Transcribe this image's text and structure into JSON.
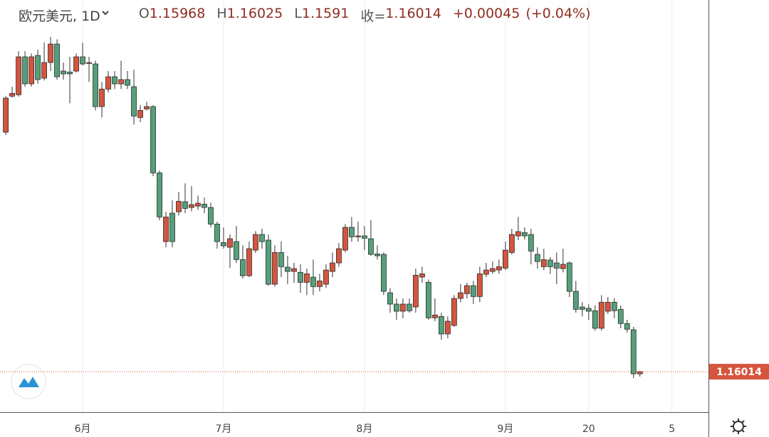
{
  "header": {
    "title": "欧元美元, 1D",
    "ohlc_labels": [
      "O",
      "H",
      "L",
      "收="
    ],
    "change": 0.00045,
    "change_label": "+0.00045",
    "change_pct": 0.04,
    "change_pct_label": "(+0.04%)"
  },
  "chart_data": {
    "type": "candlestick",
    "up_color": "#d5553f",
    "down_color": "#55a07a",
    "grid": true,
    "xlim": [
      -0.9,
      109.7
    ],
    "ylim": [
      1.1516,
      1.2386
    ],
    "xticks": [
      {
        "value": 12,
        "label": "6月"
      },
      {
        "value": 34,
        "label": "7月"
      },
      {
        "value": 56,
        "label": "8月"
      },
      {
        "value": 78,
        "label": "9月"
      },
      {
        "value": 91,
        "label": "20"
      },
      {
        "value": 104,
        "label": "5"
      }
    ],
    "open": [
      1.2107,
      1.2183,
      1.2186,
      1.2266,
      1.2209,
      1.2269,
      1.2221,
      1.2254,
      1.2293,
      1.2236,
      1.2234,
      1.2236,
      1.2266,
      1.2252,
      1.2251,
      1.2161,
      1.2198,
      1.2224,
      1.2209,
      1.2218,
      1.2203,
      1.2138,
      1.2156,
      1.2161,
      1.2021,
      1.1876,
      1.1936,
      1.1939,
      1.196,
      1.1948,
      1.1951,
      1.1955,
      1.1948,
      1.1913,
      1.1874,
      1.1864,
      1.1876,
      1.1838,
      1.1804,
      1.1858,
      1.1891,
      1.1879,
      1.1786,
      1.1853,
      1.1822,
      1.1813,
      1.1811,
      1.179,
      1.1801,
      1.1781,
      1.1786,
      1.1813,
      1.1831,
      1.1858,
      1.1906,
      1.1886,
      1.1888,
      1.1882,
      1.185,
      1.1849,
      1.1768,
      1.1744,
      1.1729,
      1.1744,
      1.1738,
      1.1801,
      1.179,
      1.1715,
      1.1718,
      1.1681,
      1.1699,
      1.1756,
      1.1766,
      1.1783,
      1.176,
      1.1807,
      1.1813,
      1.1816,
      1.182,
      1.1853,
      1.1888,
      1.1895,
      1.1891,
      1.1849,
      1.1823,
      1.1837,
      1.1831,
      1.1819,
      1.1831,
      1.1771,
      1.1738,
      1.1735,
      1.173,
      1.1693,
      1.1729,
      1.1748,
      1.1733,
      1.1703,
      1.169,
      1.15968
    ],
    "high": [
      1.2183,
      1.2203,
      1.2278,
      1.2278,
      1.2273,
      1.2281,
      1.2296,
      1.2308,
      1.2303,
      1.2254,
      1.2266,
      1.2273,
      1.2296,
      1.2266,
      1.2258,
      1.2213,
      1.2236,
      1.2236,
      1.2258,
      1.2236,
      1.2239,
      1.2164,
      1.2171,
      1.2164,
      1.2026,
      1.1939,
      1.1963,
      1.1981,
      1.1999,
      1.1993,
      1.1973,
      1.1969,
      1.1958,
      1.1918,
      1.1906,
      1.1891,
      1.1909,
      1.1868,
      1.1876,
      1.1898,
      1.1903,
      1.1891,
      1.1868,
      1.1876,
      1.1846,
      1.1831,
      1.1828,
      1.1819,
      1.1838,
      1.1808,
      1.1828,
      1.1853,
      1.1873,
      1.1913,
      1.1928,
      1.1918,
      1.1909,
      1.1921,
      1.1868,
      1.1853,
      1.1778,
      1.1756,
      1.1756,
      1.1756,
      1.1819,
      1.1823,
      1.1796,
      1.1756,
      1.1726,
      1.1718,
      1.1763,
      1.1786,
      1.1789,
      1.1793,
      1.1823,
      1.1831,
      1.1834,
      1.1838,
      1.1876,
      1.1903,
      1.1928,
      1.1906,
      1.1903,
      1.1864,
      1.1861,
      1.1843,
      1.1853,
      1.1861,
      1.1834,
      1.1793,
      1.1748,
      1.1744,
      1.1741,
      1.1763,
      1.1759,
      1.1756,
      1.1741,
      1.1711,
      1.1696,
      1.16025
    ],
    "low": [
      1.2101,
      1.218,
      1.2182,
      1.2203,
      1.2203,
      1.2209,
      1.2216,
      1.2236,
      1.2218,
      1.2218,
      1.2168,
      1.2233,
      1.2248,
      1.2213,
      1.2153,
      1.2138,
      1.2191,
      1.2198,
      1.2198,
      1.2198,
      1.2123,
      1.2128,
      1.2153,
      1.2014,
      1.1921,
      1.1864,
      1.1864,
      1.1931,
      1.1936,
      1.194,
      1.1943,
      1.1936,
      1.1906,
      1.1861,
      1.1861,
      1.182,
      1.1831,
      1.1798,
      1.1801,
      1.1852,
      1.1861,
      1.1783,
      1.1781,
      1.1801,
      1.1786,
      1.1789,
      1.1768,
      1.1763,
      1.1763,
      1.1771,
      1.1778,
      1.1801,
      1.1823,
      1.1853,
      1.1876,
      1.1876,
      1.1858,
      1.1846,
      1.1838,
      1.1763,
      1.1726,
      1.1711,
      1.1714,
      1.1726,
      1.1726,
      1.1789,
      1.1711,
      1.1708,
      1.1669,
      1.1672,
      1.1696,
      1.1748,
      1.1756,
      1.1744,
      1.1748,
      1.1801,
      1.1808,
      1.1808,
      1.1816,
      1.1849,
      1.1879,
      1.188,
      1.1828,
      1.1819,
      1.1816,
      1.1808,
      1.1786,
      1.1811,
      1.1759,
      1.1726,
      1.1718,
      1.1711,
      1.1688,
      1.1688,
      1.1723,
      1.1714,
      1.1693,
      1.1684,
      1.1588,
      1.1591
    ],
    "close": [
      1.2179,
      1.2189,
      1.2266,
      1.2209,
      1.2266,
      1.2218,
      1.2254,
      1.2293,
      1.2224,
      1.223,
      1.223,
      1.2266,
      1.2251,
      1.2254,
      1.2161,
      1.2198,
      1.2224,
      1.2209,
      1.2218,
      1.2206,
      1.2141,
      1.2153,
      1.2161,
      1.2021,
      1.1928,
      1.1928,
      1.1876,
      1.1961,
      1.1946,
      1.1954,
      1.1957,
      1.1948,
      1.1913,
      1.1876,
      1.1867,
      1.1882,
      1.1838,
      1.1804,
      1.1861,
      1.1891,
      1.1876,
      1.1786,
      1.1853,
      1.1823,
      1.1813,
      1.1819,
      1.179,
      1.1808,
      1.1781,
      1.1793,
      1.1816,
      1.1831,
      1.1861,
      1.1906,
      1.1886,
      1.1888,
      1.1883,
      1.1849,
      1.1846,
      1.1771,
      1.1744,
      1.1729,
      1.1744,
      1.173,
      1.1805,
      1.1808,
      1.1715,
      1.1721,
      1.1681,
      1.1708,
      1.1756,
      1.1768,
      1.1783,
      1.176,
      1.1808,
      1.1816,
      1.1819,
      1.1823,
      1.1858,
      1.1891,
      1.1897,
      1.1888,
      1.1856,
      1.1834,
      1.1838,
      1.1823,
      1.182,
      1.1828,
      1.1771,
      1.1733,
      1.1733,
      1.1729,
      1.1693,
      1.1748,
      1.1748,
      1.173,
      1.1703,
      1.1691,
      1.1597,
      1.16014
    ]
  }
}
